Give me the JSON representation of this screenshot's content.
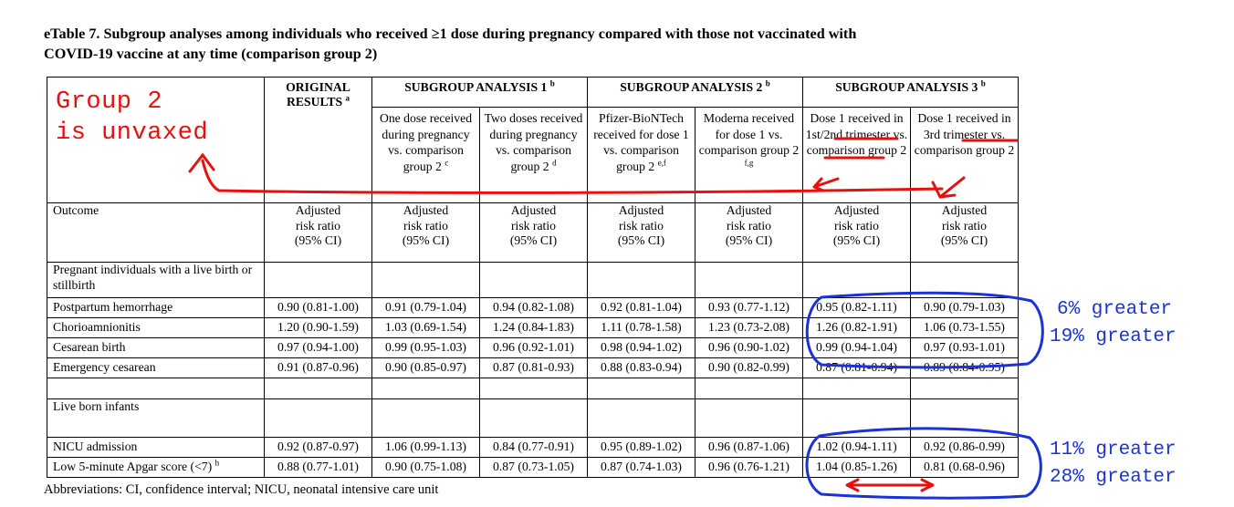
{
  "title": {
    "line1": "eTable 7. Subgroup analyses among individuals who received ≥1 dose during pregnancy compared with those not vaccinated with",
    "line2": "COVID-19 vaccine at any time (comparison group 2)"
  },
  "groups": {
    "original": {
      "text": "ORIGINAL RESULTS",
      "sup": "a"
    },
    "sa1": {
      "text": "SUBGROUP ANALYSIS 1",
      "sup": "b"
    },
    "sa2": {
      "text": "SUBGROUP ANALYSIS 2",
      "sup": "b"
    },
    "sa3": {
      "text": "SUBGROUP ANALYSIS 3",
      "sup": "b"
    }
  },
  "subheaders": [
    {
      "text": "One dose received during pregnancy vs. comparison group 2",
      "sup": "c"
    },
    {
      "text": "Two doses received during pregnancy vs. comparison group 2",
      "sup": "d"
    },
    {
      "text": "Pfizer-BioNTech received for dose 1 vs. comparison group 2",
      "sup": "e,f"
    },
    {
      "text": "Moderna received for dose 1 vs. comparison group 2",
      "sup": "f,g"
    },
    {
      "text": "Dose 1 received in 1st/2nd trimester vs. comparison group 2",
      "sup": ""
    },
    {
      "text": "Dose 1 received in 3rd trimester vs. comparison group 2",
      "sup": ""
    }
  ],
  "outcome_header": "Outcome",
  "measure_lines": [
    "Adjusted",
    "risk ratio",
    "(95% CI)"
  ],
  "sections": {
    "pregnant": "Pregnant individuals with a live birth or stillbirth",
    "infants": "Live born infants"
  },
  "rows_pregnant": [
    {
      "outcome": "Postpartum hemorrhage",
      "values": [
        "0.90 (0.81-1.00)",
        "0.91 (0.79-1.04)",
        "0.94 (0.82-1.08)",
        "0.92 (0.81-1.04)",
        "0.93 (0.77-1.12)",
        "0.95 (0.82-1.11)",
        "0.90 (0.79-1.03)"
      ]
    },
    {
      "outcome": "Chorioamnionitis",
      "values": [
        "1.20 (0.90-1.59)",
        "1.03 (0.69-1.54)",
        "1.24 (0.84-1.83)",
        "1.11 (0.78-1.58)",
        "1.23 (0.73-2.08)",
        "1.26 (0.82-1.91)",
        "1.06 (0.73-1.55)"
      ]
    },
    {
      "outcome": "Cesarean birth",
      "values": [
        "0.97 (0.94-1.00)",
        "0.99 (0.95-1.03)",
        "0.96 (0.92-1.01)",
        "0.98 (0.94-1.02)",
        "0.96 (0.90-1.02)",
        "0.99 (0.94-1.04)",
        "0.97 (0.93-1.01)"
      ]
    },
    {
      "outcome": "Emergency cesarean",
      "values": [
        "0.91 (0.87-0.96)",
        "0.90 (0.85-0.97)",
        "0.87 (0.81-0.93)",
        "0.88 (0.83-0.94)",
        "0.90 (0.82-0.99)",
        "0.87 (0.81-0.94)",
        "0.89 (0.84-0.95)"
      ]
    }
  ],
  "rows_infants": [
    {
      "outcome": "NICU admission",
      "sup": "",
      "values": [
        "0.92 (0.87-0.97)",
        "1.06 (0.99-1.13)",
        "0.84 (0.77-0.91)",
        "0.95 (0.89-1.02)",
        "0.96 (0.87-1.06)",
        "1.02 (0.94-1.11)",
        "0.92 (0.86-0.99)"
      ]
    },
    {
      "outcome": "Low 5-minute Apgar score (<7)",
      "sup": "h",
      "values": [
        "0.88 (0.77-1.01)",
        "0.90 (0.75-1.08)",
        "0.87 (0.73-1.05)",
        "0.87 (0.74-1.03)",
        "0.96 (0.76-1.21)",
        "1.04 (0.85-1.26)",
        "0.81 (0.68-0.96)"
      ]
    }
  ],
  "footer": "Abbreviations: CI, confidence interval; NICU, neonatal intensive care unit",
  "annotations": {
    "red_line1": "Group 2",
    "red_line2": "is unvaxed",
    "blue": [
      "6% greater",
      "19% greater",
      "11% greater",
      "28% greater"
    ]
  },
  "colors": {
    "annotation_red": "#e8100f",
    "annotation_blue": "#1a32d8"
  }
}
